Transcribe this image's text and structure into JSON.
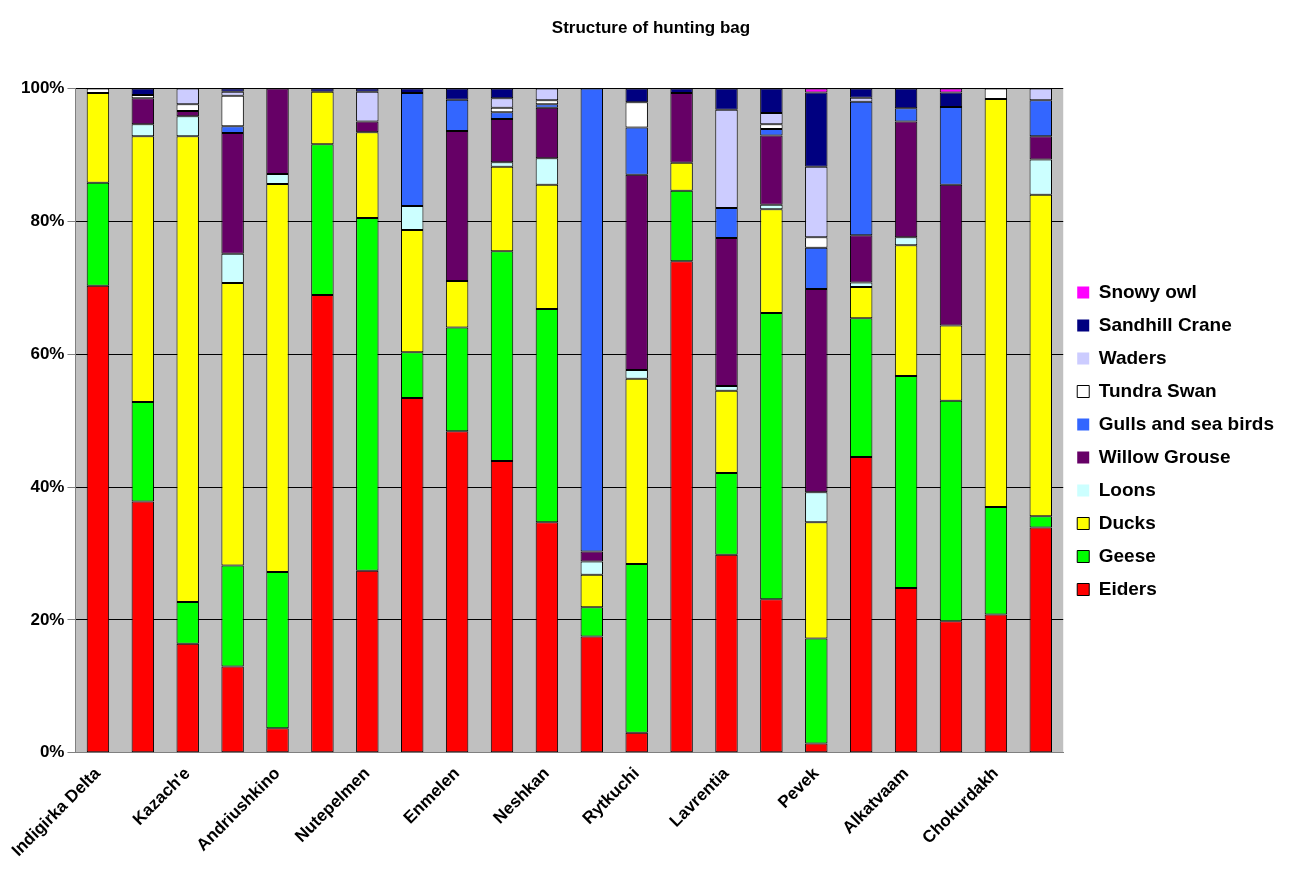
{
  "chart_data": {
    "type": "bar",
    "title": "Structure of hunting bag",
    "stacked": true,
    "legend": "right",
    "grid": "y",
    "categories": [
      "Indigirka Delta",
      null,
      "Kazach'e",
      null,
      "Andriushkino",
      null,
      "Nutepelmen",
      null,
      "Enmelen",
      null,
      "Neshkan",
      null,
      "Rytkuchi",
      null,
      "Lavrentia",
      null,
      "Pevek",
      null,
      "Alkatvaam",
      null,
      "Chokurdakh",
      null
    ],
    "ylim": [
      0,
      100
    ],
    "yticks": [
      {
        "value": 0,
        "label": "0%"
      },
      {
        "value": 20,
        "label": "20%"
      },
      {
        "value": 40,
        "label": "40%"
      },
      {
        "value": 60,
        "label": "60%"
      },
      {
        "value": 80,
        "label": "80%"
      },
      {
        "value": 100,
        "label": "100%"
      }
    ],
    "series": [
      {
        "name": "Eiders",
        "color": "#ff0000",
        "values": [
          70.3,
          37.8,
          16.4,
          13.0,
          3.7,
          68.9,
          27.4,
          53.4,
          48.4,
          43.9,
          34.7,
          17.5,
          3.0,
          74.0,
          29.8,
          23.1,
          1.4,
          44.5,
          24.8,
          19.8,
          20.8,
          33.9
        ]
      },
      {
        "name": "Geese",
        "color": "#00ff00",
        "values": [
          15.5,
          15.0,
          6.3,
          15.2,
          23.5,
          22.7,
          53.1,
          6.9,
          15.6,
          31.6,
          32.1,
          4.4,
          25.4,
          10.6,
          12.3,
          43.1,
          15.8,
          20.9,
          31.9,
          33.2,
          16.2,
          1.7
        ]
      },
      {
        "name": "Ducks",
        "color": "#ffff00",
        "values": [
          13.5,
          40.0,
          70.1,
          42.5,
          58.4,
          7.9,
          12.9,
          18.4,
          7.0,
          12.7,
          18.7,
          4.9,
          27.9,
          4.2,
          12.4,
          15.6,
          17.5,
          4.7,
          19.7,
          11.3,
          61.4,
          48.4
        ]
      },
      {
        "name": "Loons",
        "color": "#ccffff",
        "values": [
          0,
          1.8,
          3.0,
          4.4,
          1.5,
          0,
          0,
          3.6,
          0,
          0.7,
          4.0,
          2.0,
          1.3,
          0,
          0.7,
          0.7,
          4.5,
          0.7,
          1.2,
          0,
          0,
          5.3
        ]
      },
      {
        "name": "Willow Grouse",
        "color": "#660066",
        "values": [
          0,
          3.9,
          0.8,
          18.2,
          12.9,
          0,
          1.6,
          0,
          22.6,
          6.5,
          7.6,
          1.5,
          29.4,
          10.5,
          22.3,
          10.4,
          30.6,
          7.1,
          17.4,
          21.2,
          0,
          3.5
        ]
      },
      {
        "name": "Gulls and sea birds",
        "color": "#3366ff",
        "values": [
          0,
          0,
          0,
          1.0,
          0,
          0,
          0,
          17.0,
          4.7,
          1.0,
          0.5,
          69.7,
          7.1,
          0,
          4.5,
          1.0,
          6.2,
          20.1,
          2.0,
          11.7,
          0,
          5.4
        ]
      },
      {
        "name": "Tundra Swan",
        "color": "#ffffff",
        "values": [
          0.7,
          0.5,
          1.0,
          4.6,
          0,
          0,
          0,
          0,
          0,
          0.7,
          0.6,
          0,
          3.8,
          0,
          0,
          0.7,
          1.6,
          0,
          0,
          0,
          1.6,
          0
        ]
      },
      {
        "name": "Waders",
        "color": "#ccccff",
        "values": [
          0,
          0,
          2.4,
          0.6,
          0,
          0,
          4.5,
          0,
          0,
          1.4,
          1.8,
          0,
          0,
          0,
          14.8,
          1.7,
          10.6,
          0.6,
          0,
          0,
          0,
          1.8
        ]
      },
      {
        "name": "Sandhill Crane",
        "color": "#000080",
        "values": [
          0,
          1.0,
          0,
          0.5,
          0,
          0.5,
          0.5,
          0.7,
          1.7,
          1.5,
          0,
          0,
          2.1,
          0.7,
          3.2,
          3.7,
          11.2,
          1.4,
          3.0,
          2.2,
          0,
          0
        ]
      },
      {
        "name": "Snowy owl",
        "color": "#ff00ff",
        "values": [
          0,
          0,
          0,
          0,
          0,
          0,
          0,
          0,
          0,
          0,
          0,
          0,
          0,
          0,
          0,
          0,
          0.6,
          0,
          0,
          0.6,
          0,
          0
        ]
      }
    ]
  }
}
